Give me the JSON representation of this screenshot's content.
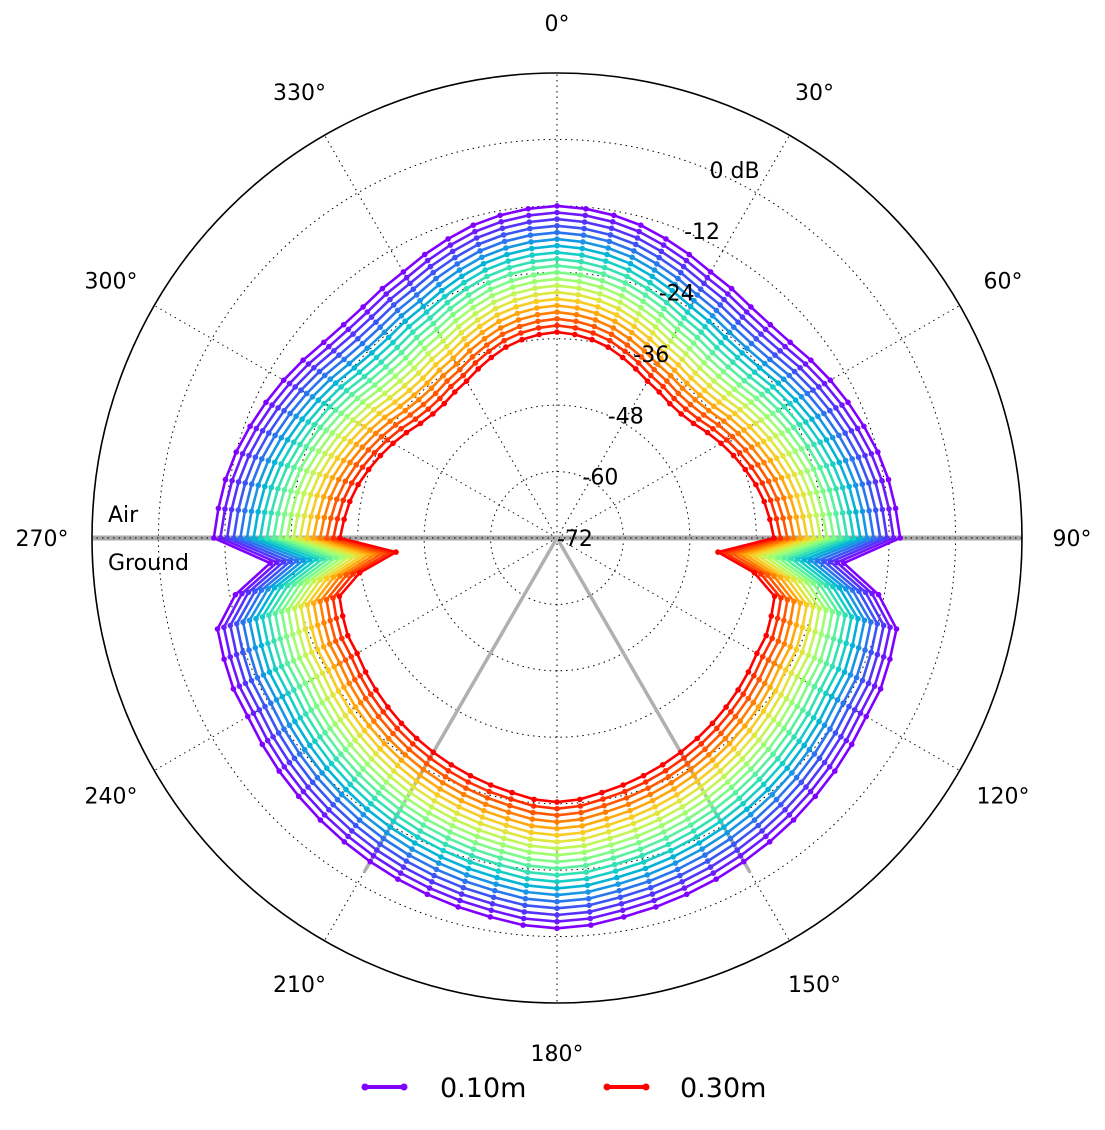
{
  "chart_data": {
    "type": "line",
    "projection": "polar",
    "theta_zero": "north",
    "theta_direction": "clockwise",
    "angle_unit": "deg",
    "angle_ticks": [
      {
        "angle": 0,
        "label": "0°"
      },
      {
        "angle": 30,
        "label": "30°"
      },
      {
        "angle": 60,
        "label": "60°"
      },
      {
        "angle": 90,
        "label": "90°"
      },
      {
        "angle": 120,
        "label": "120°"
      },
      {
        "angle": 150,
        "label": "150°"
      },
      {
        "angle": 180,
        "label": "180°"
      },
      {
        "angle": 210,
        "label": "210°"
      },
      {
        "angle": 240,
        "label": "240°"
      },
      {
        "angle": 270,
        "label": "270°"
      },
      {
        "angle": 300,
        "label": "300°"
      },
      {
        "angle": 330,
        "label": "330°"
      }
    ],
    "radial_unit": "dB",
    "rlim": [
      -72,
      12
    ],
    "radial_ticks": [
      {
        "value": -72,
        "label": "-72"
      },
      {
        "value": -60,
        "label": "-60"
      },
      {
        "value": -48,
        "label": "-48"
      },
      {
        "value": -36,
        "label": "-36"
      },
      {
        "value": -24,
        "label": "-24"
      },
      {
        "value": -12,
        "label": "-12"
      },
      {
        "value": 0,
        "label": "0 dB"
      }
    ],
    "grid": true,
    "boundary": {
      "angle_a": 90,
      "angle_b": 270,
      "label_above": "Air",
      "label_below": "Ground"
    },
    "reference_rays": [
      150,
      210
    ],
    "series": [
      {
        "name": "0.10m",
        "color": "#8000ff",
        "offset_db": 0.0
      },
      {
        "color": "#6c19fe",
        "offset_db": -1.2
      },
      {
        "color": "#5433fb",
        "offset_db": -2.4
      },
      {
        "color": "#3c54f6",
        "offset_db": -3.6
      },
      {
        "color": "#2a75ee",
        "offset_db": -4.8
      },
      {
        "color": "#1796e3",
        "offset_db": -6.0
      },
      {
        "color": "#03b4d6",
        "offset_db": -7.2
      },
      {
        "color": "#17cec6",
        "offset_db": -8.4
      },
      {
        "color": "#35e1b3",
        "offset_db": -9.6
      },
      {
        "color": "#57f09f",
        "offset_db": -10.8
      },
      {
        "color": "#7dfa88",
        "offset_db": -12.0
      },
      {
        "color": "#9ffd70",
        "offset_db": -13.2
      },
      {
        "color": "#c2f657",
        "offset_db": -14.4
      },
      {
        "color": "#e0e63d",
        "offset_db": -15.6
      },
      {
        "color": "#f7cc24",
        "offset_db": -16.8
      },
      {
        "color": "#ffa90e",
        "offset_db": -18.0
      },
      {
        "color": "#ff7f00",
        "offset_db": -19.2
      },
      {
        "color": "#ff5800",
        "offset_db": -20.4
      },
      {
        "color": "#ff2f00",
        "offset_db": -21.6
      },
      {
        "name": "0.30m",
        "color": "#ff0000",
        "offset_db": -22.8
      }
    ],
    "theta_samples": [
      0,
      5,
      10,
      15,
      20,
      25,
      30,
      35,
      40,
      45,
      50,
      55,
      60,
      65,
      70,
      75,
      80,
      85,
      90,
      95,
      100,
      105,
      110,
      115,
      120,
      125,
      130,
      135,
      140,
      145,
      150,
      155,
      160,
      165,
      170,
      175,
      180,
      185,
      190,
      195,
      200,
      205,
      210,
      215,
      220,
      225,
      230,
      235,
      240,
      245,
      250,
      255,
      260,
      265,
      270,
      275,
      280,
      285,
      290,
      295,
      300,
      305,
      310,
      315,
      320,
      325,
      330,
      335,
      340,
      345,
      350,
      355
    ],
    "reference_profile_db": [
      -12.0,
      -12.3,
      -12.8,
      -13.5,
      -14.5,
      -15.5,
      -16.5,
      -17.0,
      -17.5,
      -17.5,
      -17.0,
      -16.0,
      -15.0,
      -14.0,
      -13.0,
      -12.0,
      -11.2,
      -10.6,
      -10.0,
      -20.0,
      -13.0,
      -8.5,
      -8.0,
      -7.5,
      -7.5,
      -7.0,
      -6.5,
      -6.0,
      -5.5,
      -5.0,
      -4.5,
      -4.0,
      -3.5,
      -3.0,
      -2.5,
      -1.8,
      -1.5,
      -1.8,
      -2.5,
      -3.0,
      -3.5,
      -4.0,
      -4.5,
      -5.0,
      -5.5,
      -6.0,
      -6.5,
      -7.0,
      -7.5,
      -7.5,
      -8.0,
      -8.5,
      -13.0,
      -20.0,
      -10.0,
      -10.6,
      -11.2,
      -12.0,
      -13.0,
      -14.0,
      -15.0,
      -16.0,
      -17.0,
      -17.5,
      -17.5,
      -17.0,
      -16.5,
      -15.5,
      -14.5,
      -13.5,
      -12.8,
      -12.3
    ]
  },
  "legend": [
    {
      "label": "0.10m",
      "color": "#8000ff"
    },
    {
      "label": "0.30m",
      "color": "#ff0000"
    }
  ]
}
